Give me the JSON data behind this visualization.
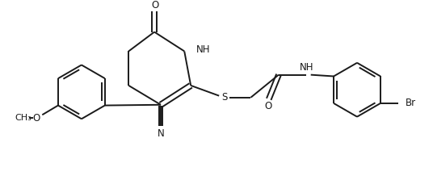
{
  "bg_color": "#ffffff",
  "line_color": "#1a1a1a",
  "line_width": 1.4,
  "font_size": 8.5,
  "figsize": [
    5.36,
    2.18
  ],
  "dpi": 100,
  "xlim": [
    0,
    10
  ],
  "ylim": [
    0,
    4.0
  ]
}
